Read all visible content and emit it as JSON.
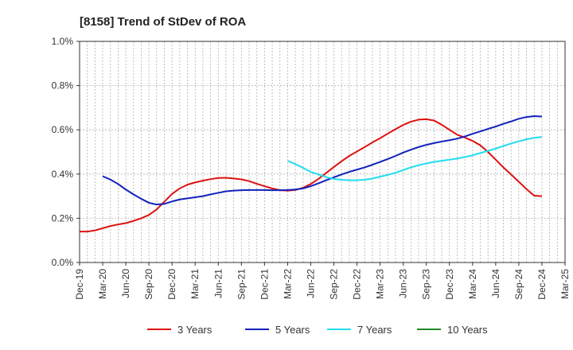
{
  "chart_data": {
    "type": "line",
    "title": "[8158]  Trend of StDev of ROA",
    "xlabel": "",
    "ylabel": "",
    "x_ticks": [
      "Dec-19",
      "Mar-20",
      "Jun-20",
      "Sep-20",
      "Dec-20",
      "Mar-21",
      "Jun-21",
      "Sep-21",
      "Dec-21",
      "Mar-22",
      "Jun-22",
      "Sep-22",
      "Dec-22",
      "Mar-23",
      "Jun-23",
      "Sep-23",
      "Dec-23",
      "Mar-24",
      "Jun-24",
      "Sep-24",
      "Dec-24",
      "Mar-25"
    ],
    "y_ticks": [
      "0.0%",
      "0.2%",
      "0.4%",
      "0.6%",
      "0.8%",
      "1.0%"
    ],
    "ylim": [
      0,
      1.0
    ],
    "y_unit": "%",
    "grid": true,
    "legend_position": "bottom",
    "series": [
      {
        "name": "3 Years",
        "color": "#dd1111",
        "x": [
          "Dec-19",
          "Jan-20",
          "Feb-20",
          "Mar-20",
          "Apr-20",
          "May-20",
          "Jun-20",
          "Jul-20",
          "Aug-20",
          "Sep-20",
          "Oct-20",
          "Nov-20",
          "Dec-20",
          "Jan-21",
          "Feb-21",
          "Mar-21",
          "Apr-21",
          "May-21",
          "Jun-21",
          "Jul-21",
          "Aug-21",
          "Sep-21",
          "Oct-21",
          "Nov-21",
          "Dec-21",
          "Jan-22",
          "Feb-22",
          "Mar-22",
          "Apr-22",
          "May-22",
          "Jun-22",
          "Jul-22",
          "Aug-22",
          "Sep-22",
          "Oct-22",
          "Nov-22",
          "Dec-22",
          "Jan-23",
          "Feb-23",
          "Mar-23",
          "Apr-23",
          "May-23",
          "Jun-23",
          "Jul-23",
          "Aug-23",
          "Sep-23",
          "Oct-23",
          "Nov-23",
          "Dec-23",
          "Jan-24",
          "Feb-24",
          "Mar-24",
          "Apr-24",
          "May-24",
          "Jun-24",
          "Jul-24",
          "Aug-24",
          "Sep-24",
          "Oct-24",
          "Nov-24",
          "Dec-24"
        ],
        "values": [
          0.14,
          0.14,
          0.145,
          0.155,
          0.165,
          0.172,
          0.178,
          0.188,
          0.2,
          0.215,
          0.24,
          0.275,
          0.31,
          0.335,
          0.352,
          0.362,
          0.37,
          0.377,
          0.382,
          0.383,
          0.38,
          0.376,
          0.368,
          0.356,
          0.345,
          0.335,
          0.327,
          0.325,
          0.328,
          0.338,
          0.355,
          0.378,
          0.405,
          0.432,
          0.458,
          0.482,
          0.502,
          0.522,
          0.543,
          0.562,
          0.583,
          0.603,
          0.622,
          0.637,
          0.646,
          0.648,
          0.642,
          0.623,
          0.6,
          0.578,
          0.565,
          0.55,
          0.53,
          0.5,
          0.465,
          0.43,
          0.398,
          0.365,
          0.332,
          0.302,
          0.3
        ]
      },
      {
        "name": "5 Years",
        "color": "#1122bb",
        "x": [
          "Mar-20",
          "Apr-20",
          "May-20",
          "Jun-20",
          "Jul-20",
          "Aug-20",
          "Sep-20",
          "Oct-20",
          "Nov-20",
          "Dec-20",
          "Jan-21",
          "Feb-21",
          "Mar-21",
          "Apr-21",
          "May-21",
          "Jun-21",
          "Jul-21",
          "Aug-21",
          "Sep-21",
          "Oct-21",
          "Nov-21",
          "Dec-21",
          "Jan-22",
          "Feb-22",
          "Mar-22",
          "Apr-22",
          "May-22",
          "Jun-22",
          "Jul-22",
          "Aug-22",
          "Sep-22",
          "Oct-22",
          "Nov-22",
          "Dec-22",
          "Jan-23",
          "Feb-23",
          "Mar-23",
          "Apr-23",
          "May-23",
          "Jun-23",
          "Jul-23",
          "Aug-23",
          "Sep-23",
          "Oct-23",
          "Nov-23",
          "Dec-23",
          "Jan-24",
          "Feb-24",
          "Mar-24",
          "Apr-24",
          "May-24",
          "Jun-24",
          "Jul-24",
          "Aug-24",
          "Sep-24",
          "Oct-24",
          "Nov-24",
          "Dec-24"
        ],
        "values": [
          0.39,
          0.375,
          0.355,
          0.33,
          0.308,
          0.288,
          0.27,
          0.262,
          0.265,
          0.276,
          0.285,
          0.29,
          0.295,
          0.3,
          0.308,
          0.315,
          0.322,
          0.325,
          0.327,
          0.328,
          0.328,
          0.328,
          0.327,
          0.327,
          0.328,
          0.33,
          0.335,
          0.345,
          0.358,
          0.372,
          0.385,
          0.398,
          0.41,
          0.42,
          0.43,
          0.442,
          0.455,
          0.468,
          0.482,
          0.497,
          0.51,
          0.522,
          0.532,
          0.54,
          0.547,
          0.553,
          0.56,
          0.57,
          0.582,
          0.593,
          0.604,
          0.615,
          0.627,
          0.638,
          0.65,
          0.658,
          0.662,
          0.66
        ]
      },
      {
        "name": "7 Years",
        "color": "#22ddee",
        "x": [
          "Mar-22",
          "Apr-22",
          "May-22",
          "Jun-22",
          "Jul-22",
          "Aug-22",
          "Sep-22",
          "Oct-22",
          "Nov-22",
          "Dec-22",
          "Jan-23",
          "Feb-23",
          "Mar-23",
          "Apr-23",
          "May-23",
          "Jun-23",
          "Jul-23",
          "Aug-23",
          "Sep-23",
          "Oct-23",
          "Nov-23",
          "Dec-23",
          "Jan-24",
          "Feb-24",
          "Mar-24",
          "Apr-24",
          "May-24",
          "Jun-24",
          "Jul-24",
          "Aug-24",
          "Sep-24",
          "Oct-24",
          "Nov-24",
          "Dec-24"
        ],
        "values": [
          0.46,
          0.445,
          0.428,
          0.41,
          0.398,
          0.386,
          0.378,
          0.374,
          0.372,
          0.372,
          0.374,
          0.38,
          0.388,
          0.396,
          0.406,
          0.418,
          0.43,
          0.44,
          0.448,
          0.455,
          0.46,
          0.465,
          0.47,
          0.477,
          0.485,
          0.495,
          0.505,
          0.515,
          0.527,
          0.538,
          0.548,
          0.557,
          0.564,
          0.568
        ]
      },
      {
        "name": "10 Years",
        "color": "#228822",
        "x": [],
        "values": []
      }
    ]
  }
}
